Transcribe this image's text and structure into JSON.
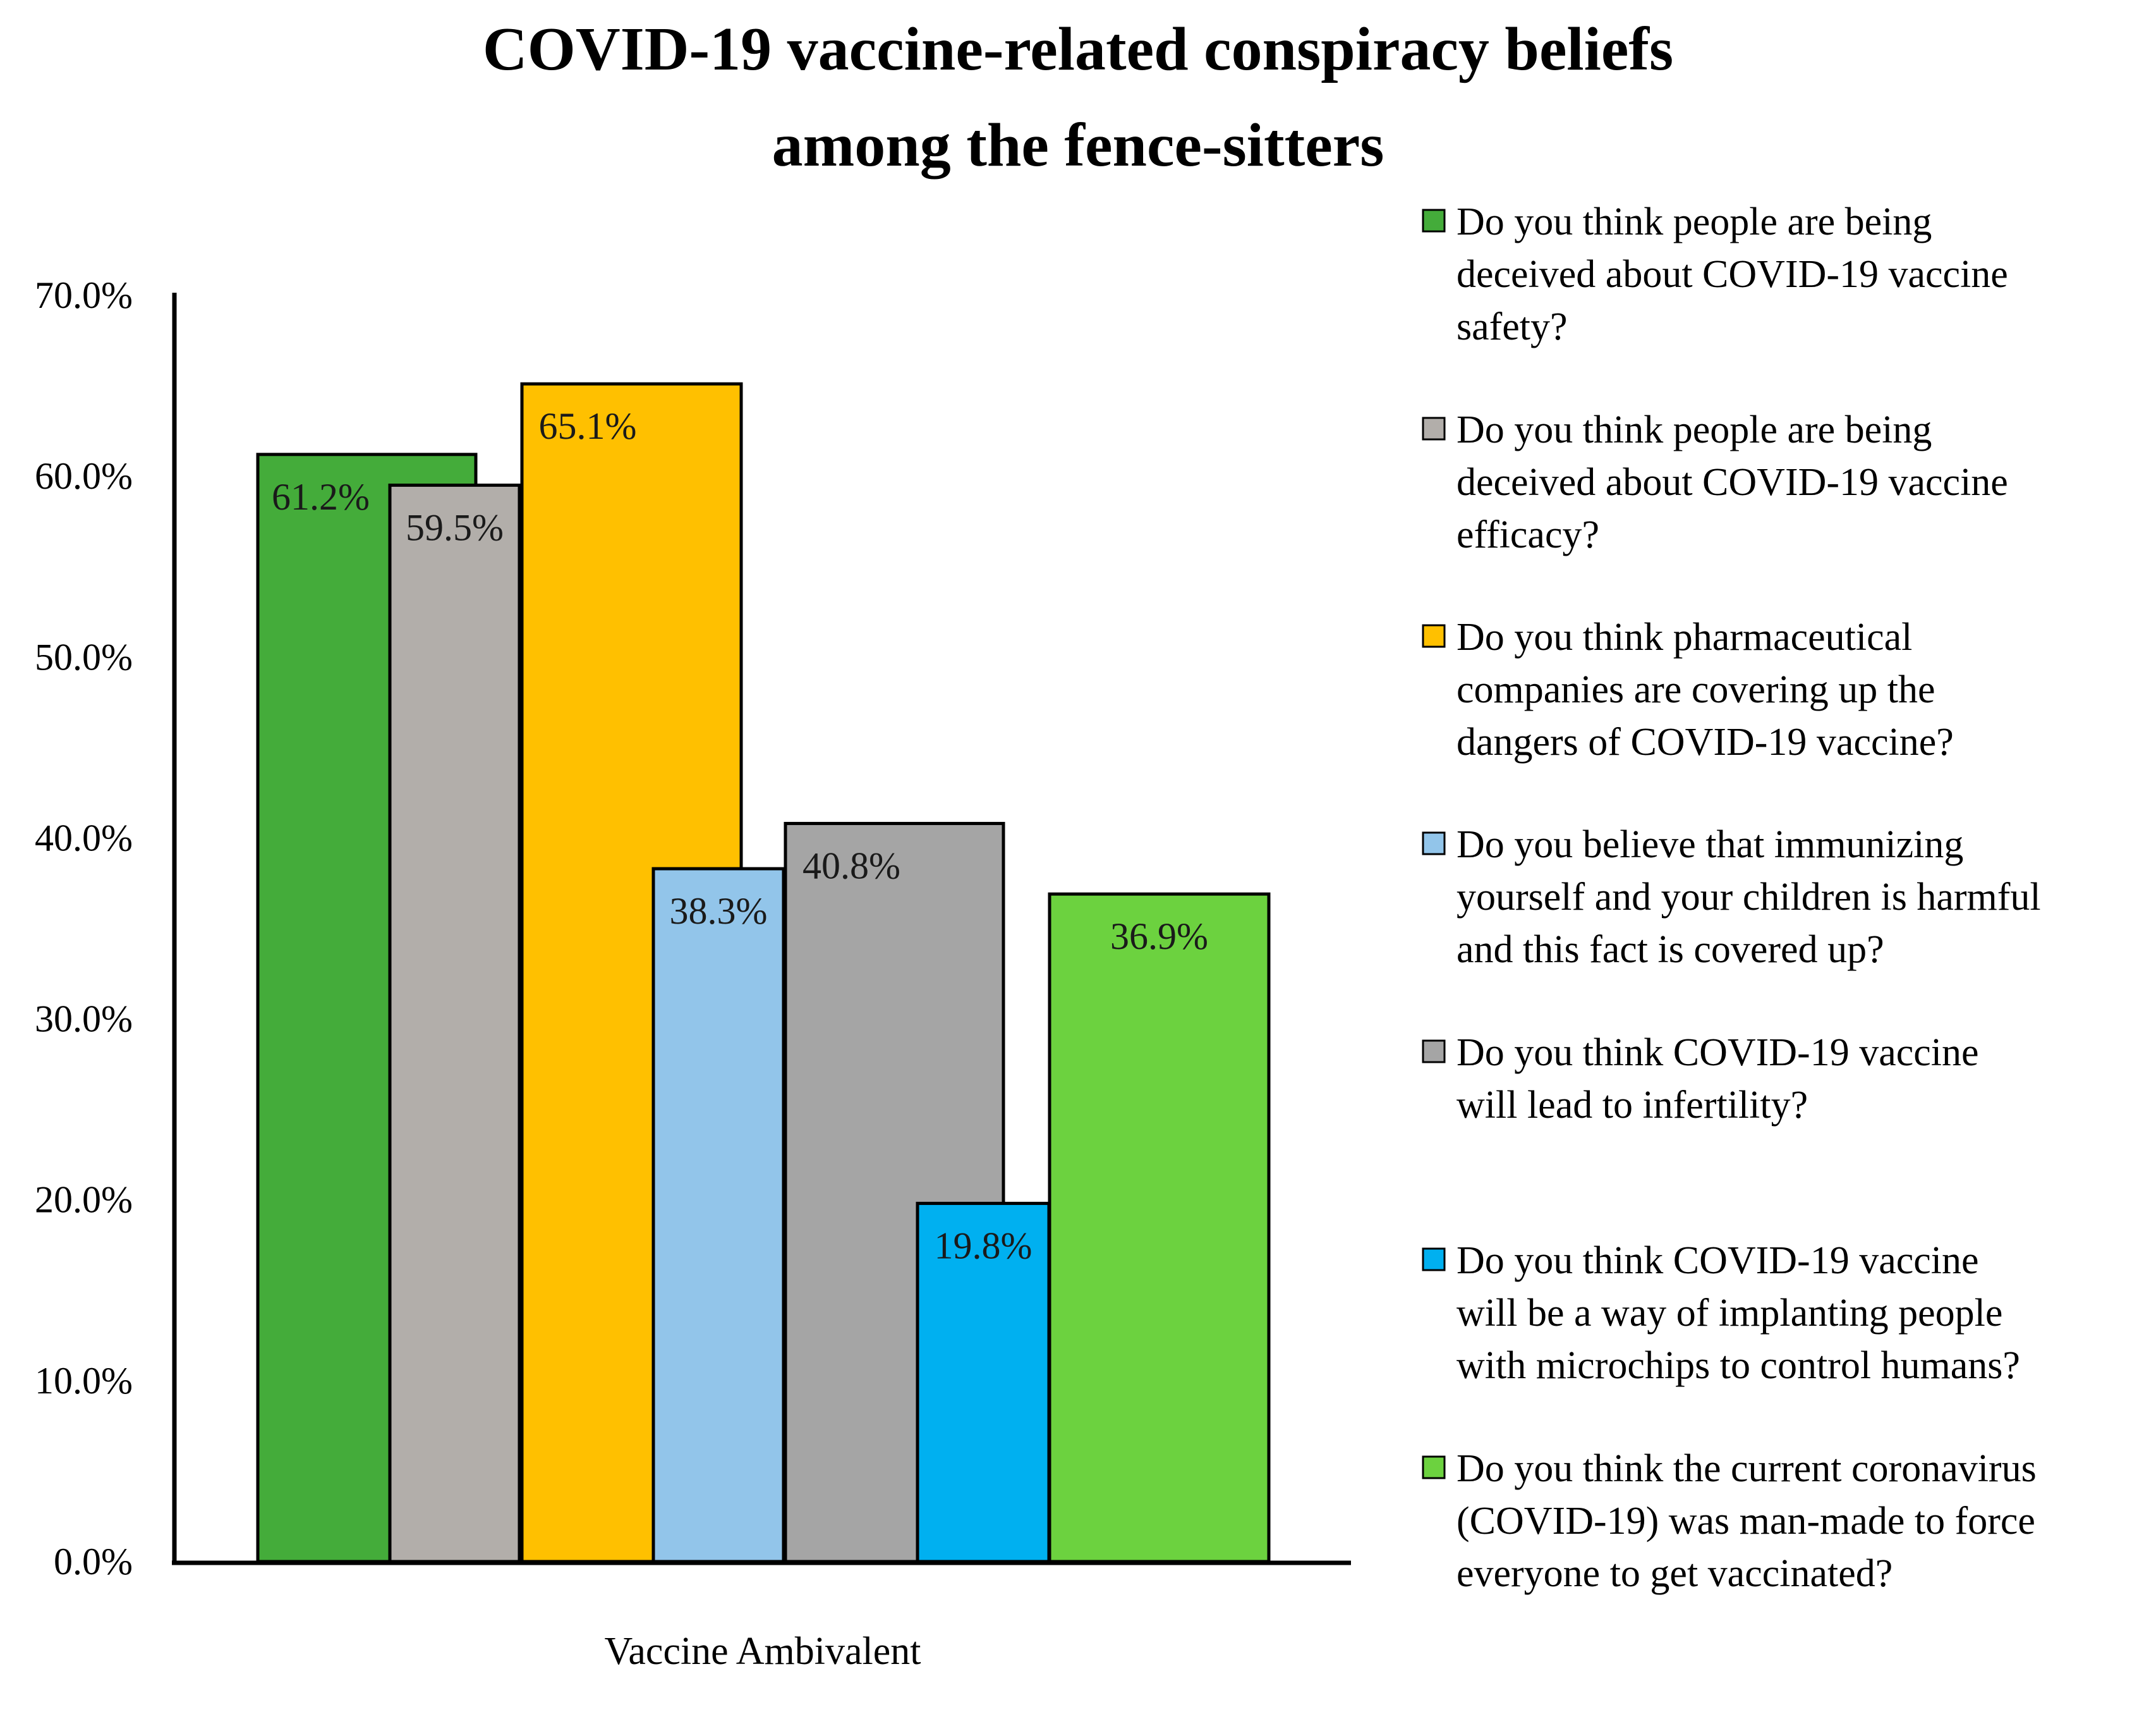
{
  "chart_data": {
    "type": "bar",
    "title_lines": [
      "COVID-19 vaccine-related conspiracy beliefs",
      "among the fence-sitters"
    ],
    "categories": [
      "Vaccine Ambivalent"
    ],
    "xlabel": "",
    "ylabel": "",
    "ylim": [
      0,
      70
    ],
    "yticks": [
      0,
      10,
      20,
      30,
      40,
      50,
      60,
      70
    ],
    "ytick_labels": [
      "0.0%",
      "10.0%",
      "20.0%",
      "30.0%",
      "40.0%",
      "50.0%",
      "60.0%",
      "70.0%"
    ],
    "grid": false,
    "legend_position": "right",
    "series": [
      {
        "name": "Do you think people are being deceived about COVID-19 vaccine safety?",
        "legend_lines": [
          "Do you think people are being",
          "deceived about COVID-19 vaccine",
          "safety?"
        ],
        "values": [
          61.2
        ],
        "label": "61.2%",
        "color": "#44AC3A"
      },
      {
        "name": "Do you think people are being deceived about COVID-19 vaccine efficacy?",
        "legend_lines": [
          "Do you think people are being",
          "deceived about COVID-19 vaccine",
          "efficacy?"
        ],
        "values": [
          59.5
        ],
        "label": "59.5%",
        "color": "#B2AEAA"
      },
      {
        "name": "Do you think pharmaceutical companies are covering up the dangers of COVID-19 vaccine?",
        "legend_lines": [
          "Do you think pharmaceutical",
          "companies are covering up the",
          "dangers of COVID-19 vaccine?"
        ],
        "values": [
          65.1
        ],
        "label": "65.1%",
        "color": "#FFC000"
      },
      {
        "name": "Do you believe that immunizing yourself and your children is harmful and this fact is covered up?",
        "legend_lines": [
          "Do you believe that immunizing",
          "yourself and your children is harmful",
          "and this fact is covered up?"
        ],
        "values": [
          38.3
        ],
        "label": "38.3%",
        "color": "#92C5EA"
      },
      {
        "name": "Do you think COVID-19 vaccine will lead to infertility?",
        "legend_lines": [
          "Do you think COVID-19 vaccine",
          "will lead to infertility?"
        ],
        "values": [
          40.8
        ],
        "label": "40.8%",
        "color": "#A5A5A5"
      },
      {
        "name": "Do you think COVID-19 vaccine will be a way of implanting people with microchips to control humans?",
        "legend_lines": [
          "Do you think COVID-19 vaccine",
          "will be a way of implanting people",
          "with microchips to control humans?"
        ],
        "values": [
          19.8
        ],
        "label": "19.8%",
        "color": "#00B0F0"
      },
      {
        "name": "Do you think the current coronavirus (COVID-19) was man-made to force everyone to get vaccinated?",
        "legend_lines": [
          "Do you think the current coronavirus",
          "(COVID-19) was man-made to force",
          "everyone to get vaccinated?"
        ],
        "values": [
          36.9
        ],
        "label": "36.9%",
        "color": "#6CD23F"
      }
    ]
  }
}
